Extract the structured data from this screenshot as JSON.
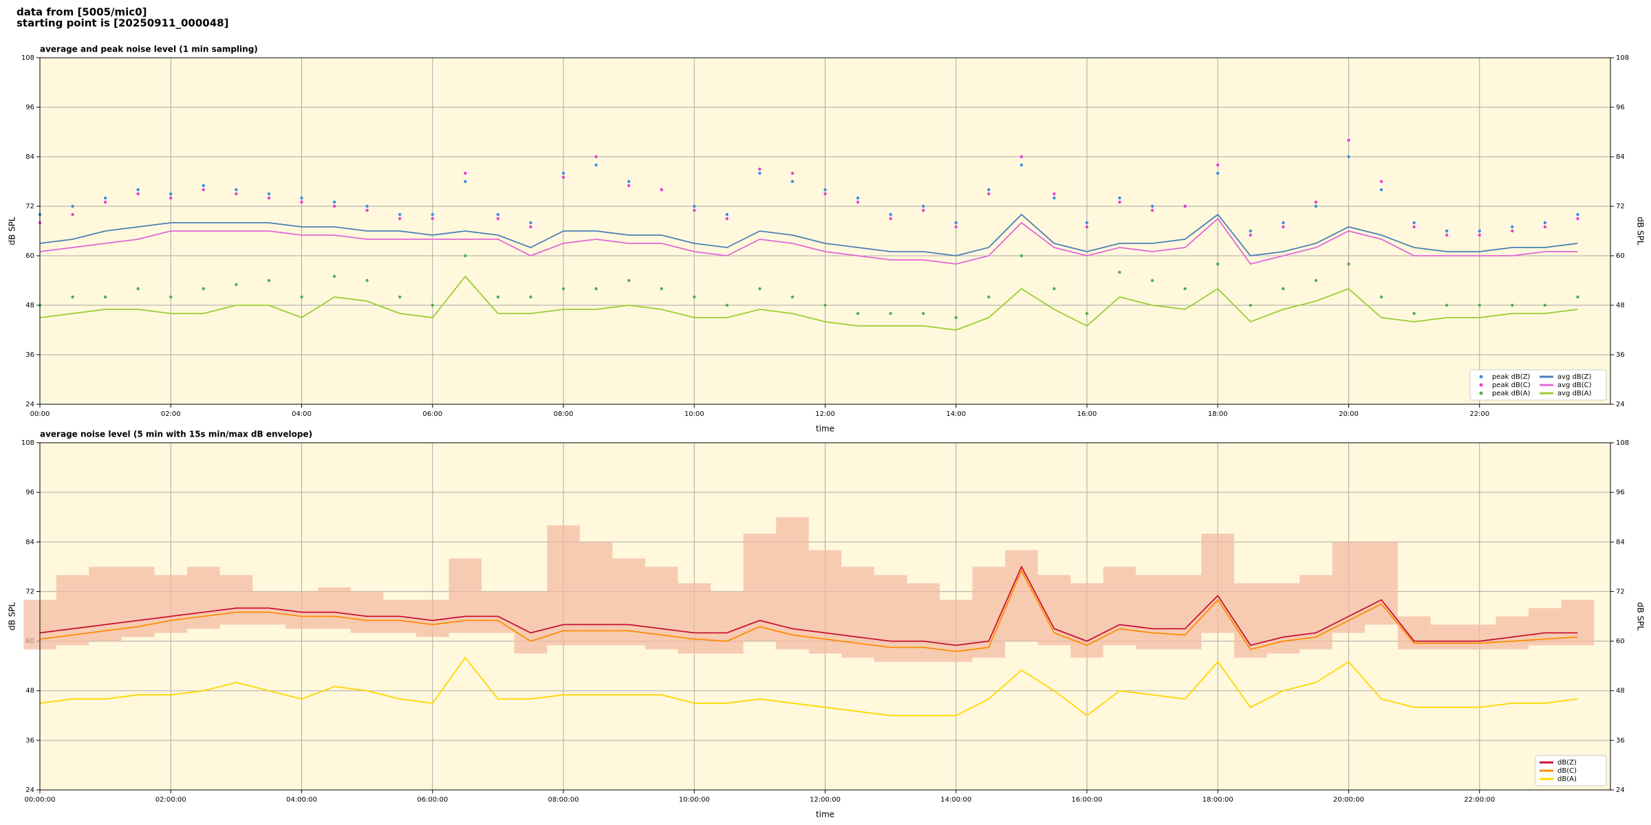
{
  "header": {
    "source": "data from [5005/mic0]",
    "start": "starting point is [20250911_000048]"
  },
  "chart_data": [
    {
      "type": "line",
      "title": "average and peak noise level (1 min sampling)",
      "xlabel": "time",
      "ylabel": "dB SPL",
      "xlim": [
        0,
        24
      ],
      "ylim": [
        24,
        108
      ],
      "yticks": [
        24,
        36,
        48,
        60,
        72,
        84,
        96,
        108
      ],
      "xticks": [
        {
          "value": 0,
          "label": "00:00"
        },
        {
          "value": 2,
          "label": "02:00"
        },
        {
          "value": 4,
          "label": "04:00"
        },
        {
          "value": 6,
          "label": "06:00"
        },
        {
          "value": 8,
          "label": "08:00"
        },
        {
          "value": 10,
          "label": "10:00"
        },
        {
          "value": 12,
          "label": "12:00"
        },
        {
          "value": 14,
          "label": "14:00"
        },
        {
          "value": 16,
          "label": "16:00"
        },
        {
          "value": 18,
          "label": "18:00"
        },
        {
          "value": 20,
          "label": "20:00"
        },
        {
          "value": 22,
          "label": "22:00"
        }
      ],
      "grid": true,
      "background": "#fff8dc",
      "legend": "lower right",
      "x": [
        0,
        0.5,
        1,
        1.5,
        2,
        2.5,
        3,
        3.5,
        4,
        4.5,
        5,
        5.5,
        6,
        6.5,
        7,
        7.5,
        8,
        8.5,
        9,
        9.5,
        10,
        10.5,
        11,
        11.5,
        12,
        12.5,
        13,
        13.5,
        14,
        14.5,
        15,
        15.5,
        16,
        16.5,
        17,
        17.5,
        18,
        18.5,
        19,
        19.5,
        20,
        20.5,
        21,
        21.5,
        22,
        22.5,
        23,
        23.5
      ],
      "series": [
        {
          "name": "peak dB(Z)",
          "type": "scatter",
          "color": "#3a8ee6",
          "values": [
            70,
            72,
            74,
            76,
            75,
            77,
            76,
            75,
            74,
            73,
            72,
            70,
            70,
            78,
            70,
            68,
            80,
            82,
            78,
            76,
            72,
            70,
            80,
            78,
            76,
            74,
            70,
            72,
            68,
            76,
            82,
            74,
            68,
            74,
            72,
            72,
            80,
            66,
            68,
            72,
            84,
            76,
            68,
            66,
            66,
            67,
            68,
            70
          ]
        },
        {
          "name": "peak dB(C)",
          "type": "scatter",
          "color": "#e83fd0",
          "values": [
            68,
            70,
            73,
            75,
            74,
            76,
            75,
            74,
            73,
            72,
            71,
            69,
            69,
            80,
            69,
            67,
            79,
            84,
            77,
            76,
            71,
            69,
            81,
            80,
            75,
            73,
            69,
            71,
            67,
            75,
            84,
            75,
            67,
            73,
            71,
            72,
            82,
            65,
            67,
            73,
            88,
            78,
            67,
            65,
            65,
            66,
            67,
            69
          ]
        },
        {
          "name": "peak dB(A)",
          "type": "scatter",
          "color": "#4caf50",
          "values": [
            48,
            50,
            50,
            52,
            50,
            52,
            53,
            54,
            50,
            55,
            54,
            50,
            48,
            60,
            50,
            50,
            52,
            52,
            54,
            52,
            50,
            48,
            52,
            50,
            48,
            46,
            46,
            46,
            45,
            50,
            60,
            52,
            46,
            56,
            54,
            52,
            58,
            48,
            52,
            54,
            58,
            50,
            46,
            48,
            48,
            48,
            48,
            50
          ]
        },
        {
          "name": "avg dB(Z)",
          "type": "line",
          "color": "#4a7fb5",
          "values": [
            63,
            64,
            66,
            67,
            68,
            68,
            68,
            68,
            67,
            67,
            66,
            66,
            65,
            66,
            65,
            62,
            66,
            66,
            65,
            65,
            63,
            62,
            66,
            65,
            63,
            62,
            61,
            61,
            60,
            62,
            70,
            63,
            61,
            63,
            63,
            64,
            70,
            60,
            61,
            63,
            67,
            65,
            62,
            61,
            61,
            62,
            62,
            63
          ]
        },
        {
          "name": "avg dB(C)",
          "type": "line",
          "color": "#e066d8",
          "values": [
            61,
            62,
            63,
            64,
            66,
            66,
            66,
            66,
            65,
            65,
            64,
            64,
            64,
            64,
            64,
            60,
            63,
            64,
            63,
            63,
            61,
            60,
            64,
            63,
            61,
            60,
            59,
            59,
            58,
            60,
            68,
            62,
            60,
            62,
            61,
            62,
            69,
            58,
            60,
            62,
            66,
            64,
            60,
            60,
            60,
            60,
            61,
            61
          ]
        },
        {
          "name": "avg dB(A)",
          "type": "line",
          "color": "#9acd32",
          "values": [
            45,
            46,
            47,
            47,
            46,
            46,
            48,
            48,
            45,
            50,
            49,
            46,
            45,
            55,
            46,
            46,
            47,
            47,
            48,
            47,
            45,
            45,
            47,
            46,
            44,
            43,
            43,
            43,
            42,
            45,
            52,
            47,
            43,
            50,
            48,
            47,
            52,
            44,
            47,
            49,
            52,
            45,
            44,
            45,
            45,
            46,
            46,
            47
          ]
        }
      ]
    },
    {
      "type": "line",
      "title": "average noise level (5 min with 15s min/max dB envelope)",
      "xlabel": "time",
      "ylabel": "dB SPL",
      "xlim": [
        0,
        24
      ],
      "ylim": [
        24,
        108
      ],
      "yticks": [
        24,
        36,
        48,
        60,
        72,
        84,
        96,
        108
      ],
      "xticks": [
        {
          "value": 0,
          "label": "00:00:00"
        },
        {
          "value": 2,
          "label": "02:00:00"
        },
        {
          "value": 4,
          "label": "04:00:00"
        },
        {
          "value": 6,
          "label": "06:00:00"
        },
        {
          "value": 8,
          "label": "08:00:00"
        },
        {
          "value": 10,
          "label": "10:00:00"
        },
        {
          "value": 12,
          "label": "12:00:00"
        },
        {
          "value": 14,
          "label": "14:00:00"
        },
        {
          "value": 16,
          "label": "16:00:00"
        },
        {
          "value": 18,
          "label": "18:00:00"
        },
        {
          "value": 20,
          "label": "20:00:00"
        },
        {
          "value": 22,
          "label": "22:00:00"
        }
      ],
      "grid": true,
      "background": "#fff8dc",
      "legend": "lower right",
      "x": [
        0,
        0.5,
        1,
        1.5,
        2,
        2.5,
        3,
        3.5,
        4,
        4.5,
        5,
        5.5,
        6,
        6.5,
        7,
        7.5,
        8,
        8.5,
        9,
        9.5,
        10,
        10.5,
        11,
        11.5,
        12,
        12.5,
        13,
        13.5,
        14,
        14.5,
        15,
        15.5,
        16,
        16.5,
        17,
        17.5,
        18,
        18.5,
        19,
        19.5,
        20,
        20.5,
        21,
        21.5,
        22,
        22.5,
        23,
        23.5
      ],
      "envelope": {
        "color": "#f4b8a0",
        "lower": [
          58,
          59,
          60,
          61,
          62,
          63,
          64,
          64,
          63,
          63,
          62,
          62,
          61,
          62,
          62,
          57,
          59,
          59,
          59,
          58,
          57,
          57,
          60,
          58,
          57,
          56,
          55,
          55,
          55,
          56,
          60,
          59,
          56,
          59,
          58,
          58,
          62,
          56,
          57,
          58,
          62,
          64,
          58,
          58,
          58,
          58,
          59,
          59
        ],
        "upper": [
          70,
          76,
          78,
          78,
          76,
          78,
          76,
          72,
          72,
          73,
          72,
          70,
          70,
          80,
          72,
          72,
          88,
          84,
          80,
          78,
          74,
          72,
          86,
          90,
          82,
          78,
          76,
          74,
          70,
          78,
          82,
          76,
          74,
          78,
          76,
          76,
          86,
          74,
          74,
          76,
          84,
          84,
          66,
          64,
          64,
          66,
          68,
          70
        ]
      },
      "series": [
        {
          "name": "dB(Z)",
          "type": "line",
          "color": "#c8102e",
          "values": [
            62,
            63,
            64,
            65,
            66,
            67,
            68,
            68,
            67,
            67,
            66,
            66,
            65,
            66,
            66,
            62,
            64,
            64,
            64,
            63,
            62,
            62,
            65,
            63,
            62,
            61,
            60,
            60,
            59,
            60,
            78,
            63,
            60,
            64,
            63,
            63,
            71,
            59,
            61,
            62,
            66,
            70,
            60,
            60,
            60,
            61,
            62,
            62
          ]
        },
        {
          "name": "dB(C)",
          "type": "line",
          "color": "#ff8c00",
          "values": [
            60.5,
            61.5,
            62.5,
            63.5,
            65,
            66,
            67,
            67,
            66,
            66,
            65,
            65,
            64,
            65,
            65,
            60,
            62.5,
            62.5,
            62.5,
            61.5,
            60.5,
            60,
            63.5,
            61.5,
            60.5,
            59.5,
            58.5,
            58.5,
            57.5,
            58.5,
            77,
            62,
            59,
            63,
            62,
            61.5,
            70,
            58,
            60,
            61,
            65,
            69,
            59.5,
            59.5,
            59.5,
            60,
            60.5,
            61
          ]
        },
        {
          "name": "dB(A)",
          "type": "line",
          "color": "#ffd700",
          "values": [
            45,
            46,
            46,
            47,
            47,
            48,
            50,
            48,
            46,
            49,
            48,
            46,
            45,
            56,
            46,
            46,
            47,
            47,
            47,
            47,
            45,
            45,
            46,
            45,
            44,
            43,
            42,
            42,
            42,
            46,
            53,
            48,
            42,
            48,
            47,
            46,
            55,
            44,
            48,
            50,
            55,
            46,
            44,
            44,
            44,
            45,
            45,
            46
          ]
        }
      ]
    }
  ]
}
